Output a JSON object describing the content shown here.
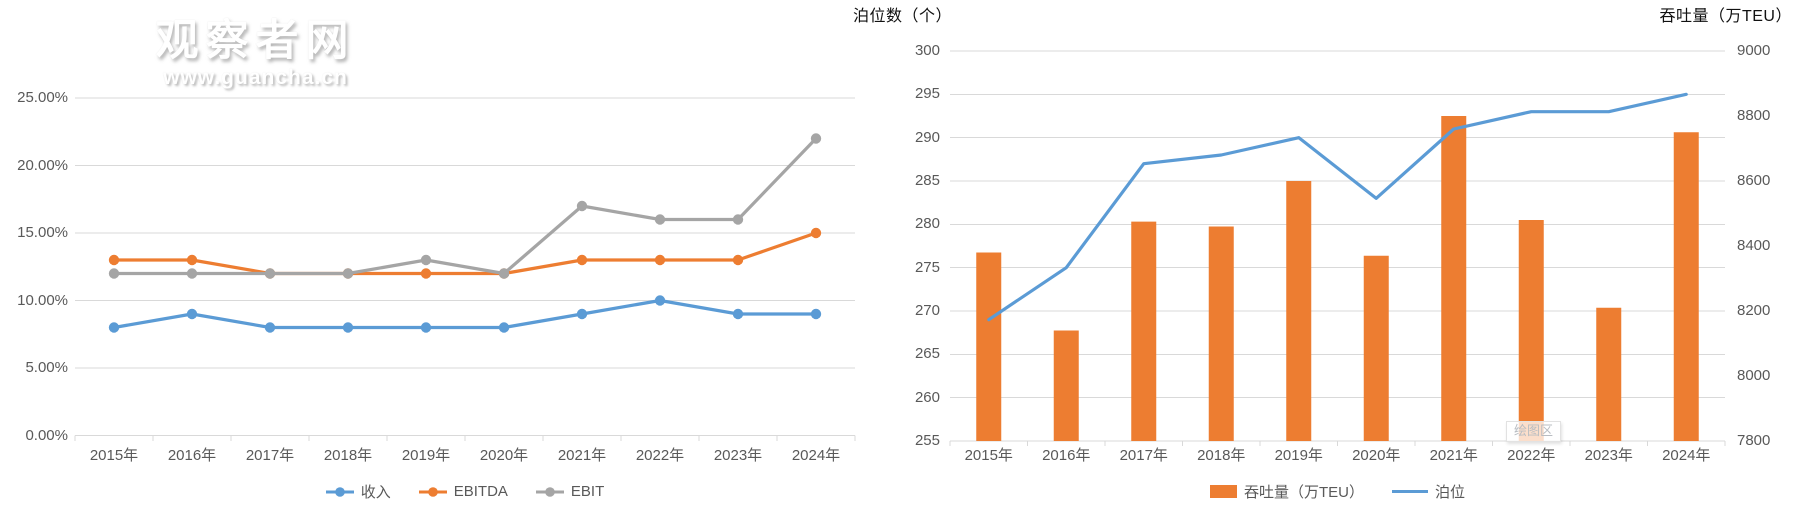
{
  "watermark": {
    "title": "观察者网",
    "url": "www.guancha.cn"
  },
  "colors": {
    "grid": "#D9D9D9",
    "tick_text": "#595959",
    "axis_title_text": "#111111",
    "blue": "#5B9BD5",
    "orange": "#ED7D31",
    "gray": "#A5A5A5"
  },
  "chart_data": [
    {
      "type": "line",
      "title": "",
      "categories": [
        "2015年",
        "2016年",
        "2017年",
        "2018年",
        "2019年",
        "2020年",
        "2021年",
        "2022年",
        "2023年",
        "2024年"
      ],
      "y_axis": {
        "tick_values": [
          0,
          5,
          10,
          15,
          20,
          25
        ],
        "tick_labels": [
          "0.00%",
          "5.00%",
          "10.00%",
          "15.00%",
          "20.00%",
          "25.00%"
        ],
        "ylim": [
          0,
          25
        ],
        "unit": "%"
      },
      "grid": true,
      "legend_position": "bottom",
      "series": [
        {
          "name": "收入",
          "color": "#5B9BD5",
          "values": [
            8,
            9,
            8,
            8,
            8,
            8,
            9,
            10,
            9,
            9
          ]
        },
        {
          "name": "EBITDA",
          "color": "#ED7D31",
          "values": [
            13,
            13,
            12,
            12,
            12,
            12,
            13,
            13,
            13,
            15
          ]
        },
        {
          "name": "EBIT",
          "color": "#A5A5A5",
          "values": [
            12,
            12,
            12,
            12,
            13,
            12,
            17,
            16,
            16,
            22
          ]
        }
      ]
    },
    {
      "type": "combo-bar-line",
      "title": "",
      "categories": [
        "2015年",
        "2016年",
        "2017年",
        "2018年",
        "2019年",
        "2020年",
        "2021年",
        "2022年",
        "2023年",
        "2024年"
      ],
      "left_axis": {
        "title": "泊位数（个）",
        "min": 255,
        "max": 300,
        "step": 5,
        "tick_labels": [
          "255",
          "260",
          "265",
          "270",
          "275",
          "280",
          "285",
          "290",
          "295",
          "300"
        ]
      },
      "right_axis": {
        "title": "吞吐量（万TEU）",
        "min": 7800,
        "max": 9000,
        "step": 200,
        "tick_labels": [
          "7800",
          "8000",
          "8200",
          "8400",
          "8600",
          "8800",
          "9000"
        ]
      },
      "grid": true,
      "legend_position": "bottom",
      "annotation": "绘图区",
      "series": [
        {
          "name": "吞吐量（万TEU）",
          "type": "bar",
          "axis": "right",
          "color": "#ED7D31",
          "values": [
            8380,
            8140,
            8475,
            8460,
            8600,
            8370,
            8800,
            8480,
            8210,
            8750
          ]
        },
        {
          "name": "泊位",
          "type": "line",
          "axis": "left",
          "color": "#5B9BD5",
          "values": [
            269,
            275,
            287,
            288,
            290,
            283,
            291,
            293,
            293,
            295
          ]
        }
      ]
    }
  ]
}
